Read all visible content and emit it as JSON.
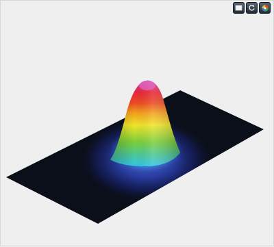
{
  "viewer": {
    "toolbar": [
      {
        "name": "view-2d-button",
        "icon": "rectangle-view-icon"
      },
      {
        "name": "reset-rotation-button",
        "icon": "rotate-icon"
      },
      {
        "name": "color-map-button",
        "icon": "color-wheel-icon"
      }
    ],
    "surface": {
      "type": "3d-gaussian-beam-profile",
      "colormap": [
        "#0a0f1c",
        "#1a2a7a",
        "#3c52c8",
        "#35c6e8",
        "#7bcf3a",
        "#f0e52a",
        "#f07d1e",
        "#e8283a",
        "#d23aa8"
      ],
      "background_color": "#0b0f1a"
    }
  }
}
